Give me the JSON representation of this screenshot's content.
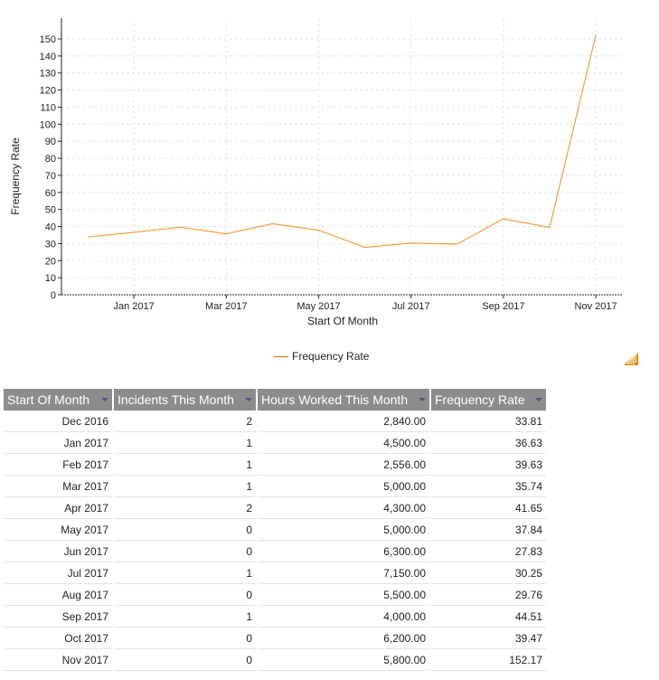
{
  "chart_data": {
    "type": "line",
    "title": "",
    "xlabel": "Start Of Month",
    "ylabel": "Frequency Rate",
    "ylim": [
      0,
      155
    ],
    "yticks": [
      0,
      10,
      20,
      30,
      40,
      50,
      60,
      70,
      80,
      90,
      100,
      110,
      120,
      130,
      140,
      150
    ],
    "xtick_labels": [
      "Jan 2017",
      "Mar 2017",
      "May 2017",
      "Jul 2017",
      "Sep 2017",
      "Nov 2017"
    ],
    "categories": [
      "Dec 2016",
      "Jan 2017",
      "Feb 2017",
      "Mar 2017",
      "Apr 2017",
      "May 2017",
      "Jun 2017",
      "Jul 2017",
      "Aug 2017",
      "Sep 2017",
      "Oct 2017",
      "Nov 2017"
    ],
    "series": [
      {
        "name": "Frequency Rate",
        "color": "#f0a040",
        "values": [
          33.81,
          36.63,
          39.63,
          35.74,
          41.65,
          37.84,
          27.83,
          30.25,
          29.76,
          44.51,
          39.47,
          152.17
        ]
      }
    ],
    "grid": true,
    "legend_position": "bottom"
  },
  "legend": {
    "label": "Frequency Rate",
    "color": "#c86e00"
  },
  "resize_icon": {
    "name": "resize-handle-icon",
    "color": "#e08a00"
  },
  "table": {
    "columns": [
      "Start Of Month",
      "Incidents This Month",
      "Hours Worked This Month",
      "Frequency Rate"
    ],
    "rows": [
      [
        "Dec 2016",
        "2",
        "2,840.00",
        "33.81"
      ],
      [
        "Jan 2017",
        "1",
        "4,500.00",
        "36.63"
      ],
      [
        "Feb 2017",
        "1",
        "2,556.00",
        "39.63"
      ],
      [
        "Mar 2017",
        "1",
        "5,000.00",
        "35.74"
      ],
      [
        "Apr 2017",
        "2",
        "4,300.00",
        "41.65"
      ],
      [
        "May 2017",
        "0",
        "5,000.00",
        "37.84"
      ],
      [
        "Jun 2017",
        "0",
        "6,300.00",
        "27.83"
      ],
      [
        "Jul 2017",
        "1",
        "7,150.00",
        "30.25"
      ],
      [
        "Aug 2017",
        "0",
        "5,500.00",
        "29.76"
      ],
      [
        "Sep 2017",
        "1",
        "4,000.00",
        "44.51"
      ],
      [
        "Oct 2017",
        "0",
        "6,200.00",
        "39.47"
      ],
      [
        "Nov 2017",
        "0",
        "5,800.00",
        "152.17"
      ]
    ]
  }
}
